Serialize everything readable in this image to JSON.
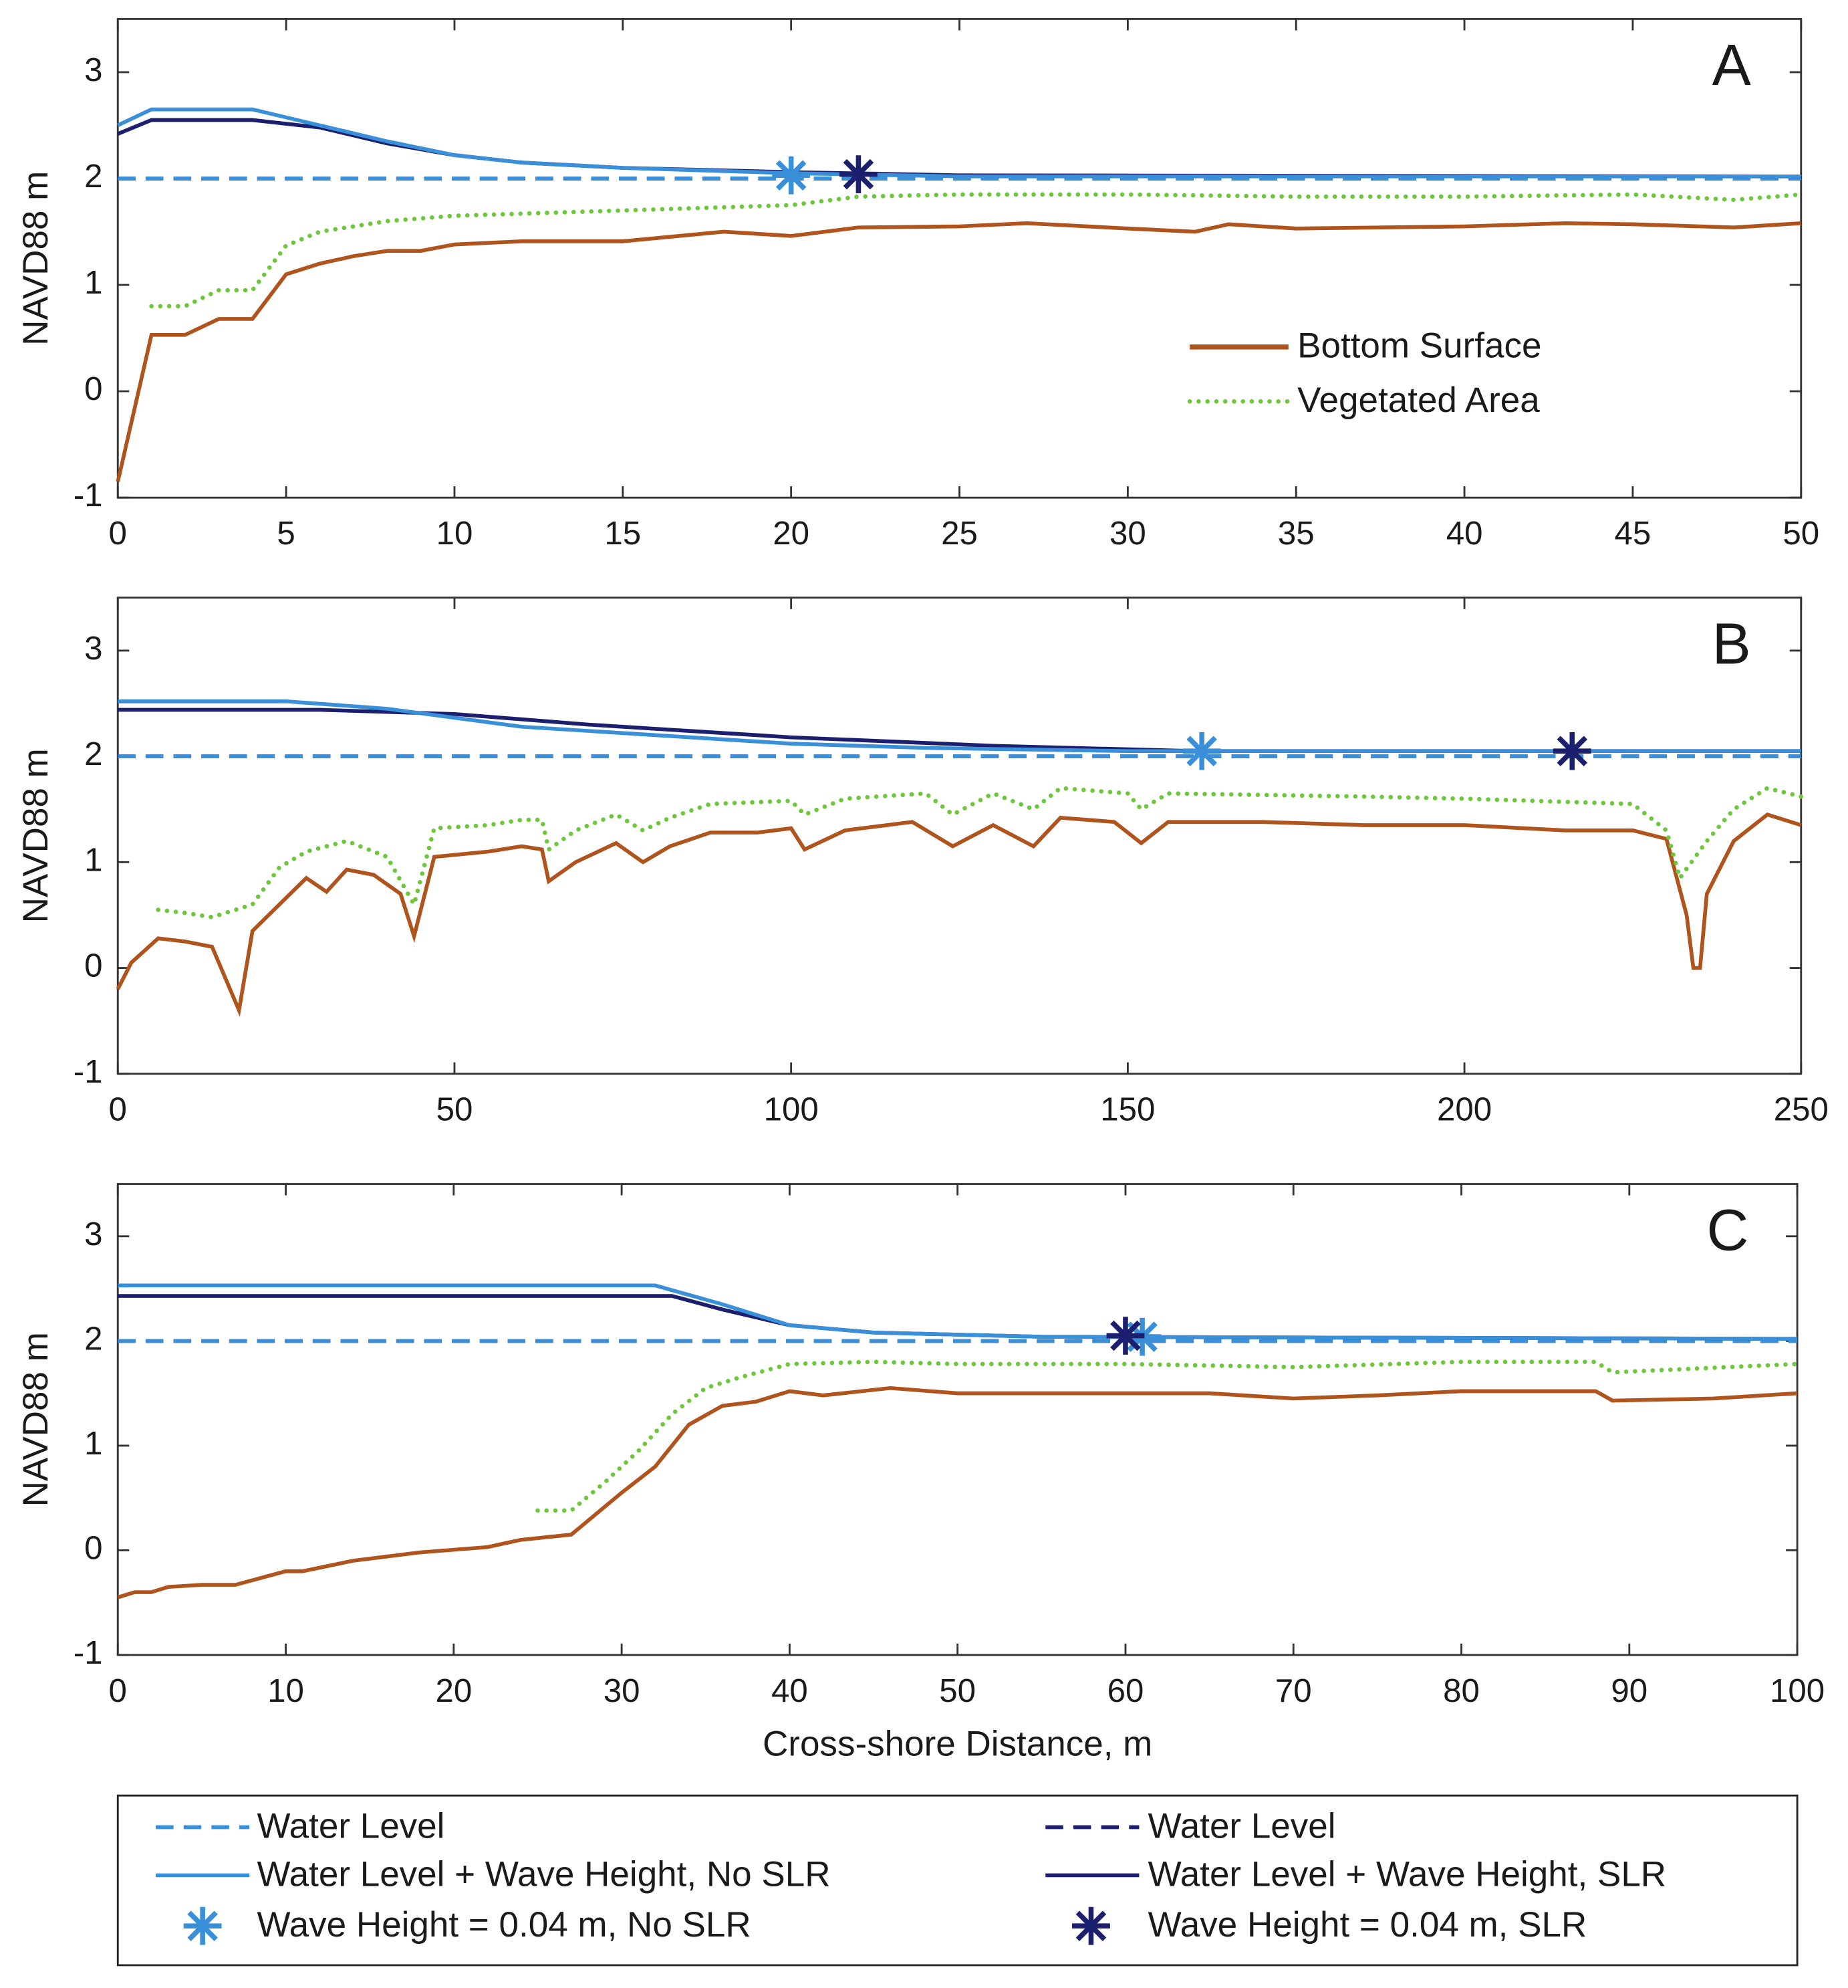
{
  "chart_data": [
    {
      "type": "line",
      "label": "A",
      "ylabel": "NAVD88 m",
      "xlim": [
        0,
        50
      ],
      "ylim": [
        -1,
        3.5
      ],
      "xticks": [
        0,
        5,
        10,
        15,
        20,
        25,
        30,
        35,
        40,
        45,
        50
      ],
      "yticks": [
        -1,
        0,
        1,
        2,
        3
      ],
      "series": [
        {
          "name": "Water Level",
          "color": "#1b1f6e",
          "style": "dashed",
          "x": [
            0,
            50
          ],
          "values": [
            2,
            2
          ]
        },
        {
          "name": "Water Level",
          "color": "#3a8fd9",
          "style": "dashed",
          "x": [
            0,
            50
          ],
          "values": [
            2,
            2
          ]
        },
        {
          "name": "Water Level + Wave Height, SLR",
          "color": "#1b1f6e",
          "style": "solid",
          "x": [
            0,
            1,
            4,
            6,
            8,
            10,
            12,
            15,
            20,
            25,
            50
          ],
          "values": [
            2.42,
            2.55,
            2.55,
            2.48,
            2.33,
            2.22,
            2.15,
            2.1,
            2.06,
            2.03,
            2.02
          ]
        },
        {
          "name": "Water Level + Wave Height, No SLR",
          "color": "#3a8fd9",
          "style": "solid",
          "x": [
            0,
            1,
            4,
            6,
            8,
            10,
            12,
            15,
            20,
            25,
            50
          ],
          "values": [
            2.5,
            2.65,
            2.65,
            2.5,
            2.35,
            2.22,
            2.15,
            2.1,
            2.05,
            2.02,
            2.02
          ]
        },
        {
          "name": "Bottom Surface",
          "color": "#b0541e",
          "style": "solid",
          "x": [
            0,
            1,
            2,
            3,
            4,
            5,
            6,
            7,
            8,
            9,
            10,
            12,
            15,
            18,
            20,
            22,
            25,
            27,
            30,
            32,
            33,
            35,
            40,
            43,
            45,
            48,
            50
          ],
          "values": [
            -0.85,
            0.53,
            0.53,
            0.68,
            0.68,
            1.1,
            1.2,
            1.27,
            1.32,
            1.32,
            1.38,
            1.41,
            1.41,
            1.5,
            1.46,
            1.54,
            1.55,
            1.58,
            1.53,
            1.5,
            1.57,
            1.53,
            1.55,
            1.58,
            1.57,
            1.54,
            1.58
          ]
        },
        {
          "name": "Vegetated Area",
          "color": "#6cc83a",
          "style": "dotted",
          "x": [
            1,
            2,
            3,
            4,
            5,
            6,
            8,
            10,
            15,
            20,
            22,
            25,
            30,
            35,
            40,
            45,
            48,
            50
          ],
          "values": [
            0.8,
            0.8,
            0.95,
            0.95,
            1.37,
            1.5,
            1.6,
            1.65,
            1.7,
            1.75,
            1.83,
            1.85,
            1.85,
            1.83,
            1.83,
            1.85,
            1.8,
            1.85
          ]
        }
      ],
      "markers": [
        {
          "name": "Wave Height = 0.04 m, No SLR",
          "color": "#3a8fd9",
          "x": 20,
          "y": 2.03
        },
        {
          "name": "Wave Height = 0.04 m, SLR",
          "color": "#1b1f6e",
          "x": 22,
          "y": 2.04
        }
      ]
    },
    {
      "type": "line",
      "label": "B",
      "ylabel": "NAVD88 m",
      "xlim": [
        0,
        250
      ],
      "ylim": [
        -1,
        3.5
      ],
      "xticks": [
        0,
        50,
        100,
        150,
        200,
        250
      ],
      "yticks": [
        -1,
        0,
        1,
        2,
        3
      ],
      "series": [
        {
          "color": "#1b1f6e",
          "style": "dashed",
          "x": [
            0,
            250
          ],
          "values": [
            2,
            2
          ]
        },
        {
          "color": "#3a8fd9",
          "style": "dashed",
          "x": [
            0,
            250
          ],
          "values": [
            2,
            2
          ]
        },
        {
          "color": "#1b1f6e",
          "style": "solid",
          "x": [
            0,
            30,
            50,
            70,
            100,
            130,
            160,
            250
          ],
          "values": [
            2.44,
            2.44,
            2.4,
            2.3,
            2.18,
            2.1,
            2.05,
            2.05
          ]
        },
        {
          "color": "#3a8fd9",
          "style": "solid",
          "x": [
            0,
            25,
            40,
            60,
            80,
            100,
            120,
            150,
            250
          ],
          "values": [
            2.52,
            2.52,
            2.45,
            2.28,
            2.2,
            2.12,
            2.08,
            2.05,
            2.05
          ]
        },
        {
          "color": "#b0541e",
          "style": "solid",
          "x": [
            0,
            2,
            6,
            10,
            14,
            18,
            20,
            24,
            28,
            31,
            34,
            38,
            42,
            44,
            47,
            55,
            60,
            63,
            64,
            68,
            74,
            78,
            82,
            88,
            95,
            100,
            102,
            108,
            118,
            124,
            130,
            136,
            140,
            148,
            152,
            156,
            170,
            185,
            200,
            215,
            225,
            230,
            233,
            234,
            235,
            236,
            240,
            245,
            250
          ],
          "values": [
            -0.2,
            0.05,
            0.28,
            0.25,
            0.2,
            -0.4,
            0.35,
            0.6,
            0.85,
            0.72,
            0.93,
            0.88,
            0.7,
            0.3,
            1.05,
            1.1,
            1.15,
            1.12,
            0.82,
            1.0,
            1.18,
            1.0,
            1.15,
            1.28,
            1.28,
            1.32,
            1.12,
            1.3,
            1.38,
            1.15,
            1.35,
            1.15,
            1.42,
            1.38,
            1.18,
            1.38,
            1.38,
            1.35,
            1.35,
            1.3,
            1.3,
            1.22,
            0.5,
            0,
            0,
            0.7,
            1.2,
            1.45,
            1.35
          ]
        },
        {
          "color": "#6cc83a",
          "style": "dotted",
          "x": [
            6,
            10,
            14,
            20,
            24,
            28,
            34,
            40,
            44,
            47,
            55,
            60,
            63,
            64,
            68,
            74,
            78,
            82,
            88,
            100,
            102,
            108,
            120,
            124,
            130,
            136,
            140,
            150,
            152,
            156,
            185,
            200,
            225,
            230,
            232,
            236,
            240,
            245,
            250
          ],
          "values": [
            0.55,
            0.52,
            0.48,
            0.6,
            0.95,
            1.1,
            1.2,
            1.05,
            0.6,
            1.32,
            1.35,
            1.4,
            1.4,
            1.12,
            1.3,
            1.45,
            1.3,
            1.42,
            1.55,
            1.58,
            1.45,
            1.6,
            1.65,
            1.45,
            1.65,
            1.5,
            1.7,
            1.65,
            1.5,
            1.65,
            1.62,
            1.6,
            1.55,
            1.3,
            0.85,
            1.2,
            1.5,
            1.7,
            1.62
          ]
        }
      ],
      "markers": [
        {
          "color": "#3a8fd9",
          "x": 161,
          "y": 2.05
        },
        {
          "color": "#1b1f6e",
          "x": 216,
          "y": 2.05
        }
      ]
    },
    {
      "type": "line",
      "label": "C",
      "ylabel": "NAVD88 m",
      "xlabel": "Cross-shore Distance, m",
      "xlim": [
        0,
        100
      ],
      "ylim": [
        -1,
        3.5
      ],
      "xticks": [
        0,
        10,
        20,
        30,
        40,
        50,
        60,
        70,
        80,
        90,
        100
      ],
      "yticks": [
        -1,
        0,
        1,
        2,
        3
      ],
      "series": [
        {
          "color": "#1b1f6e",
          "style": "dashed",
          "x": [
            0,
            100
          ],
          "values": [
            2,
            2
          ]
        },
        {
          "color": "#3a8fd9",
          "style": "dashed",
          "x": [
            0,
            100
          ],
          "values": [
            2,
            2
          ]
        },
        {
          "color": "#1b1f6e",
          "style": "solid",
          "x": [
            0,
            33,
            36,
            40,
            45,
            55,
            100
          ],
          "values": [
            2.43,
            2.43,
            2.3,
            2.15,
            2.08,
            2.04,
            2.02
          ]
        },
        {
          "color": "#3a8fd9",
          "style": "solid",
          "x": [
            0,
            32,
            36,
            40,
            45,
            55,
            100
          ],
          "values": [
            2.53,
            2.53,
            2.35,
            2.15,
            2.08,
            2.04,
            2.02
          ]
        },
        {
          "color": "#b0541e",
          "style": "solid",
          "x": [
            0,
            1,
            2,
            3,
            5,
            7,
            10,
            11,
            14,
            18,
            22,
            24,
            27,
            30,
            32,
            34,
            36,
            38,
            40,
            42,
            46,
            50,
            55,
            60,
            65,
            70,
            75,
            80,
            85,
            88,
            89,
            95,
            100
          ],
          "values": [
            -0.45,
            -0.4,
            -0.4,
            -0.35,
            -0.33,
            -0.33,
            -0.2,
            -0.2,
            -0.1,
            -0.02,
            0.03,
            0.1,
            0.15,
            0.55,
            0.8,
            1.2,
            1.38,
            1.42,
            1.52,
            1.48,
            1.55,
            1.5,
            1.5,
            1.5,
            1.5,
            1.45,
            1.48,
            1.52,
            1.52,
            1.52,
            1.43,
            1.45,
            1.5
          ]
        },
        {
          "color": "#6cc83a",
          "style": "dotted",
          "x": [
            25,
            27,
            29,
            31,
            33,
            35,
            37,
            40,
            45,
            50,
            60,
            70,
            80,
            88,
            89,
            100
          ],
          "values": [
            0.38,
            0.38,
            0.65,
            0.95,
            1.3,
            1.55,
            1.65,
            1.78,
            1.8,
            1.78,
            1.78,
            1.75,
            1.8,
            1.8,
            1.7,
            1.78
          ]
        }
      ],
      "markers": [
        {
          "color": "#3a8fd9",
          "x": 61,
          "y": 2.04
        },
        {
          "color": "#1b1f6e",
          "x": 60,
          "y": 2.05
        }
      ]
    }
  ]
}
